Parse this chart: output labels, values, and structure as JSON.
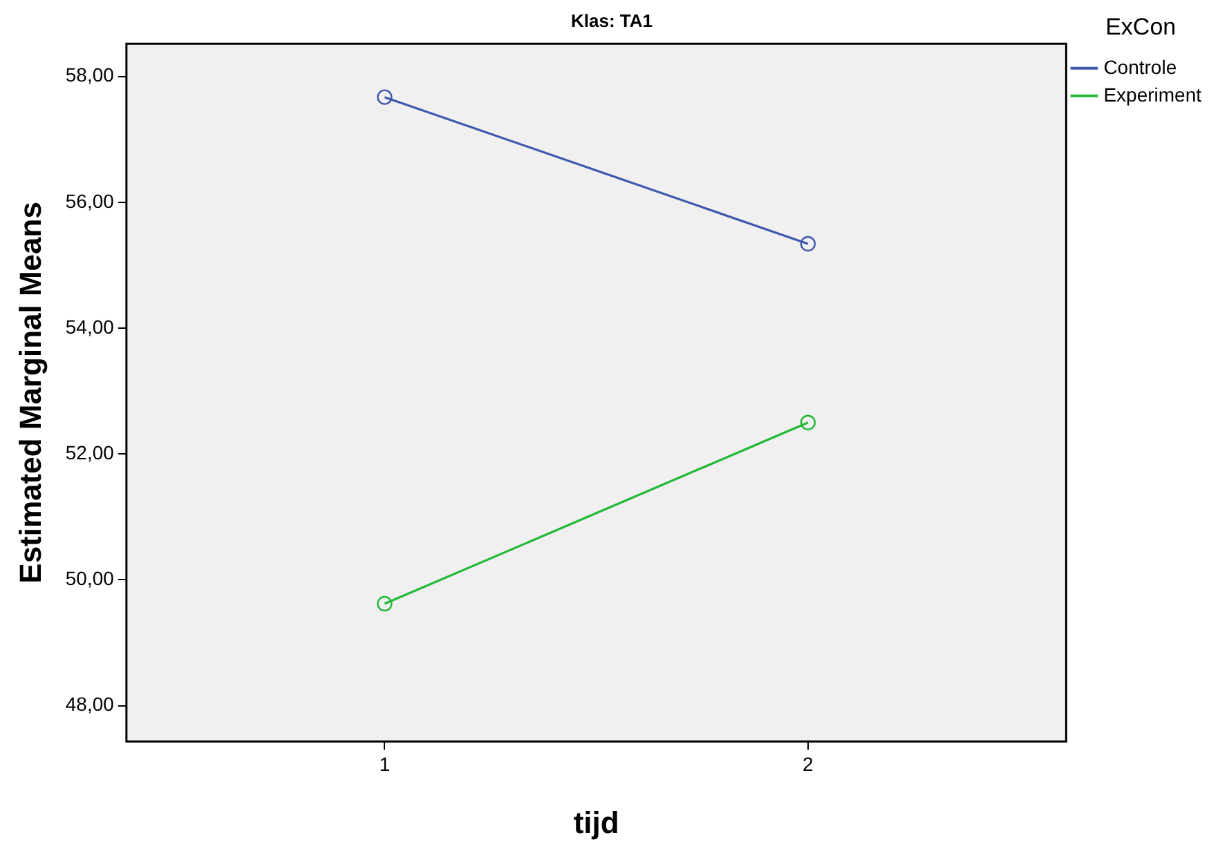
{
  "chart_data": {
    "type": "line",
    "title": "Klas: TA1",
    "xlabel": "tijd",
    "ylabel": "Estimated Marginal Means",
    "legend_title": "ExCon",
    "x": [
      1,
      2
    ],
    "xlim": [
      0.39,
      2.61
    ],
    "xticks": [
      1,
      2
    ],
    "ylim": [
      47.43,
      58.52
    ],
    "yticks": [
      {
        "value": 48,
        "label": "48,00"
      },
      {
        "value": 50,
        "label": "50,00"
      },
      {
        "value": 52,
        "label": "52,00"
      },
      {
        "value": 54,
        "label": "54,00"
      },
      {
        "value": 56,
        "label": "56,00"
      },
      {
        "value": 58,
        "label": "58,00"
      }
    ],
    "series": [
      {
        "name": "Controle",
        "color": "#3e58ac",
        "values": [
          57.67,
          55.34
        ]
      },
      {
        "name": "Experiment",
        "color": "#21b838",
        "values": [
          49.62,
          52.5
        ]
      }
    ],
    "grid": false,
    "legend": "top right",
    "marker": "circle",
    "line_style": "solid"
  }
}
